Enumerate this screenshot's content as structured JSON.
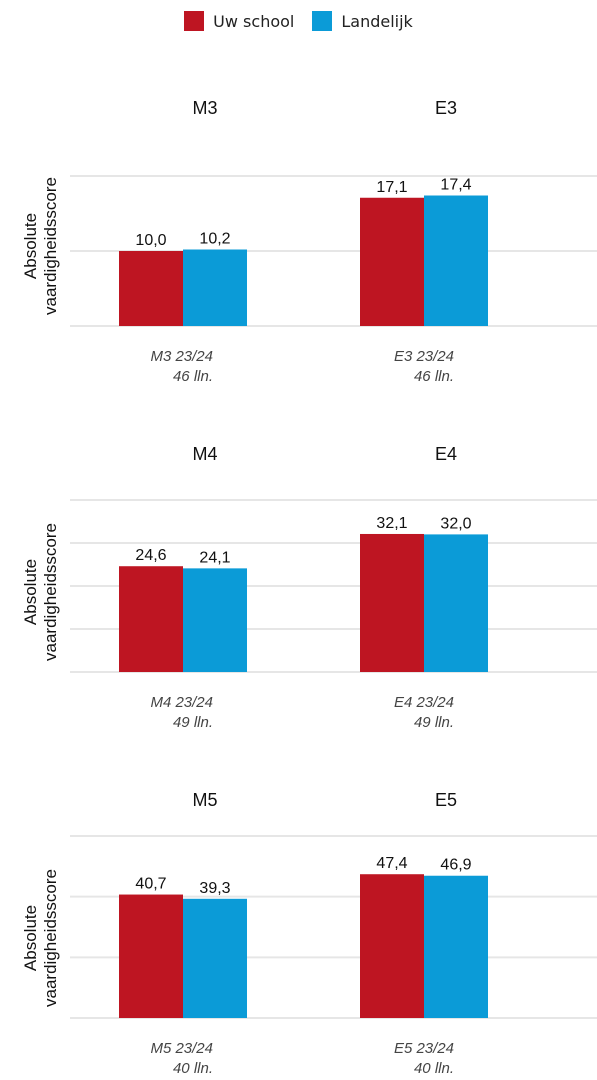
{
  "legend": [
    {
      "name": "Uw school",
      "color": "#be1522"
    },
    {
      "name": "Landelijk",
      "color": "#0b9bd7"
    }
  ],
  "chart_data": [
    {
      "type": "bar",
      "ylabel": "Absolute vaardigheidsscore",
      "ylim": [
        0,
        20
      ],
      "grid": true,
      "groups": [
        {
          "title": "M3",
          "category": [
            "M3 23/24",
            "46 lln."
          ],
          "values": [
            10.0,
            10.2
          ],
          "labels": [
            "10,0",
            "10,2"
          ]
        },
        {
          "title": "E3",
          "category": [
            "E3 23/24",
            "46 lln."
          ],
          "values": [
            17.1,
            17.4
          ],
          "labels": [
            "17,1",
            "17,4"
          ]
        }
      ]
    },
    {
      "type": "bar",
      "ylabel": "Absolute vaardigheidsscore",
      "ylim": [
        0,
        40
      ],
      "grid": true,
      "groups": [
        {
          "title": "M4",
          "category": [
            "M4 23/24",
            "49 lln."
          ],
          "values": [
            24.6,
            24.1
          ],
          "labels": [
            "24,6",
            "24,1"
          ]
        },
        {
          "title": "E4",
          "category": [
            "E4 23/24",
            "49 lln."
          ],
          "values": [
            32.1,
            32.0
          ],
          "labels": [
            "32,1",
            "32,0"
          ]
        }
      ]
    },
    {
      "type": "bar",
      "ylabel": "Absolute vaardigheidsscore",
      "ylim": [
        0,
        60
      ],
      "grid": true,
      "groups": [
        {
          "title": "M5",
          "category": [
            "M5 23/24",
            "40 lln."
          ],
          "values": [
            40.7,
            39.3
          ],
          "labels": [
            "40,7",
            "39,3"
          ]
        },
        {
          "title": "E5",
          "category": [
            "E5 23/24",
            "40 lln."
          ],
          "values": [
            47.4,
            46.9
          ],
          "labels": [
            "47,4",
            "46,9"
          ]
        }
      ]
    }
  ]
}
